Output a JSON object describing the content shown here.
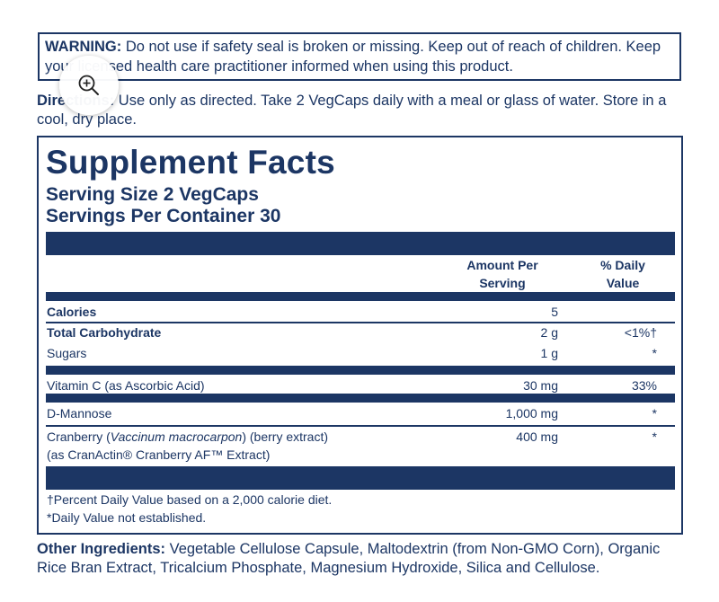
{
  "warning": {
    "label": "WARNING:",
    "text": " Do not use if safety seal is broken or missing. Keep out of reach of children. Keep your licensed health care practitioner informed when using this product."
  },
  "directions": {
    "label": "Directions:",
    "text": " Use only as directed. Take 2 VegCaps daily with a meal or glass of water. Store in a cool, dry place."
  },
  "zoom": {
    "icon": "zoom-in-icon"
  },
  "facts": {
    "title": "Supplement Facts",
    "serving_size": "Serving Size 2 VegCaps",
    "servings_per_container": "Servings Per Container 30",
    "col_amount_line1": "Amount Per",
    "col_amount_line2": "Serving",
    "col_dv_line1": "% Daily",
    "col_dv_line2": "Value",
    "rows": [
      {
        "name": "Calories",
        "amount": "5",
        "dv": ""
      },
      {
        "name": "Total Carbohydrate",
        "amount": "2 g",
        "dv": "<1%†"
      },
      {
        "name": "Sugars",
        "amount": "1 g",
        "dv": "*"
      },
      {
        "name": "Vitamin C (as Ascorbic Acid)",
        "amount": "30 mg",
        "dv": "33%"
      },
      {
        "name": "D-Mannose",
        "amount": "1,000 mg",
        "dv": "*"
      },
      {
        "name_prefix": "Cranberry (",
        "name_italic": "Vaccinum macrocarpon",
        "name_suffix": ") (berry extract)",
        "name_line2": "(as CranActin® Cranberry AF™ Extract)",
        "amount": "400 mg",
        "dv": "*"
      }
    ],
    "footnote1": "†Percent Daily Value based on a 2,000 calorie diet.",
    "footnote2": "*Daily Value not established."
  },
  "other_ingredients": {
    "label": "Other Ingredients:",
    "text": " Vegetable Cellulose Capsule, Maltodextrin (from Non-GMO Corn), Organic Rice Bran Extract, Tricalcium Phosphate, Magnesium Hydroxide, Silica and Cellulose."
  }
}
